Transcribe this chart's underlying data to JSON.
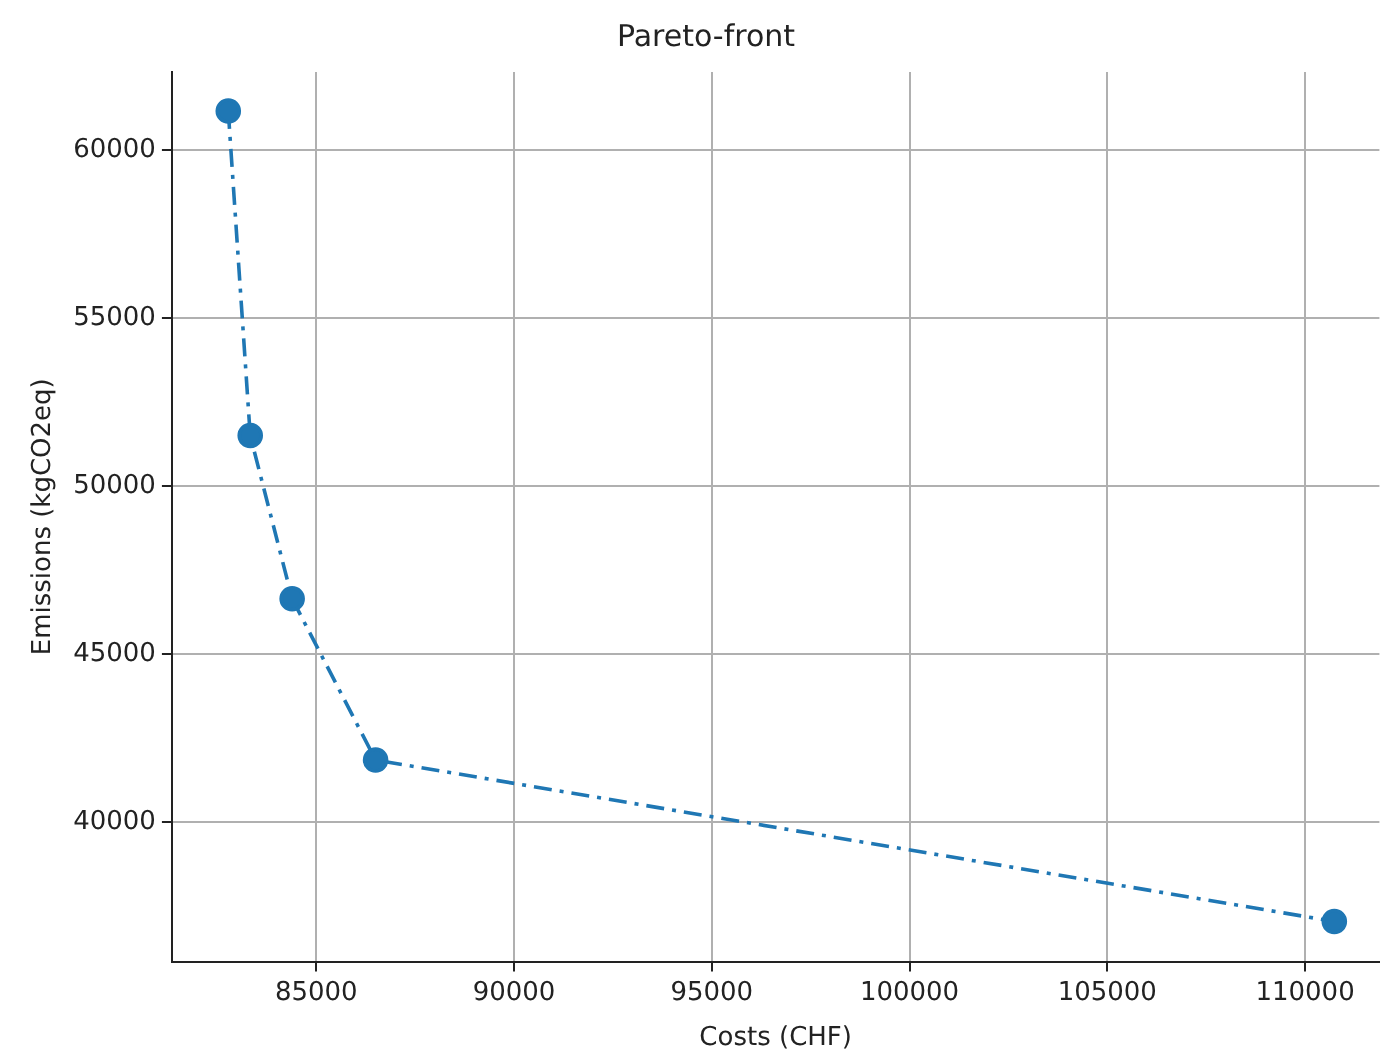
{
  "chart_data": {
    "type": "line",
    "title": "Pareto-front",
    "xlabel": "Costs (CHF)",
    "ylabel": "Emissions (kgCO2eq)",
    "x": [
      82775,
      83330,
      84390,
      86500,
      110740
    ],
    "series": [
      {
        "color": "#1f77b4",
        "values": [
          61160,
          51500,
          46640,
          41840,
          37035
        ]
      }
    ],
    "xlim": [
      81350,
      111880
    ],
    "xticks": [
      85000,
      90000,
      95000,
      100000,
      105000,
      110000
    ],
    "ylim": [
      35840,
      62320
    ],
    "yticks": [
      40000,
      45000,
      50000,
      55000,
      60000
    ],
    "grid": true,
    "legend": false,
    "marker": "circle",
    "line_style": "dashed"
  }
}
